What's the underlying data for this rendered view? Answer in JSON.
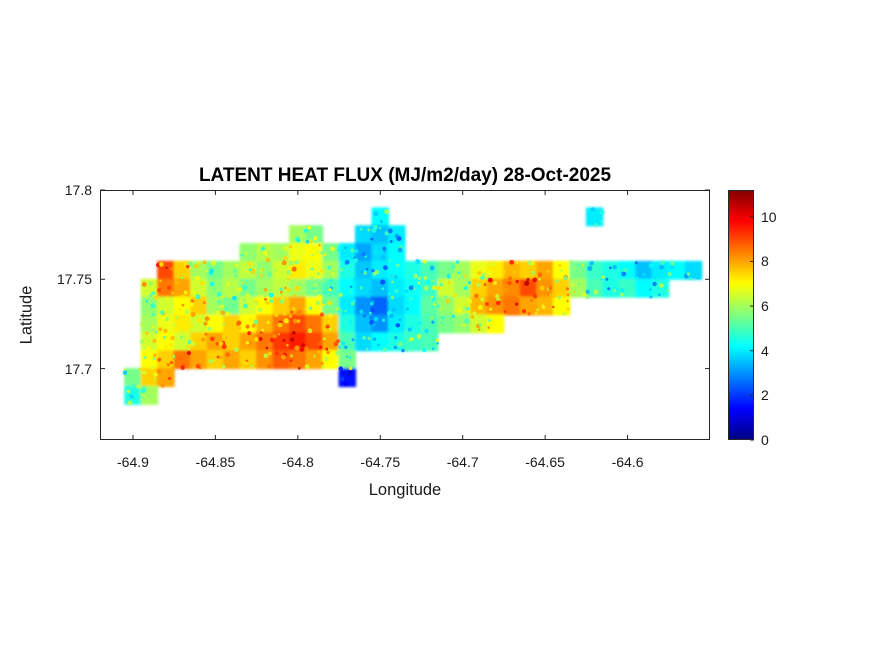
{
  "chart_data": {
    "type": "heatmap",
    "title": "LATENT HEAT FLUX (MJ/m2/day) 28-Oct-2025",
    "xlabel": "Longitude",
    "ylabel": "Latitude",
    "xlim": [
      -64.92,
      -64.55
    ],
    "ylim": [
      17.66,
      17.8
    ],
    "xticks": [
      -64.9,
      -64.85,
      -64.8,
      -64.75,
      -64.7,
      -64.65,
      -64.6
    ],
    "xtick_labels": [
      "-64.9",
      "-64.85",
      "-64.8",
      "-64.75",
      "-64.7",
      "-64.65",
      "-64.6"
    ],
    "yticks": [
      17.7,
      17.75,
      17.8
    ],
    "ytick_labels": [
      "17.7",
      "17.75",
      "17.8"
    ],
    "grid_on": false,
    "legend": "colorbar-right",
    "colormap": "jet",
    "clim": [
      0,
      11.2
    ],
    "colorbar_ticks": [
      0,
      2,
      4,
      6,
      8,
      10
    ],
    "colorbar_tick_labels": [
      "0",
      "2",
      "4",
      "6",
      "8",
      "10"
    ],
    "grid": {
      "lon_start": -64.9,
      "lon_step": 0.01,
      "lat_start": 17.785,
      "lat_step": 0.01,
      "note": "rows top-to-bottom by latitude, cols west-to-east by longitude; null = ocean; values are MJ/m2/day",
      "values": [
        [
          null,
          null,
          null,
          null,
          null,
          null,
          null,
          null,
          null,
          null,
          null,
          null,
          null,
          null,
          null,
          4.2,
          null,
          null,
          null,
          null,
          null,
          null,
          null,
          null,
          null,
          null,
          null,
          null,
          4.0,
          null,
          null,
          null,
          null,
          null,
          null
        ],
        [
          null,
          null,
          null,
          null,
          null,
          null,
          null,
          null,
          null,
          null,
          6.0,
          5.5,
          null,
          null,
          3.8,
          3.5,
          4.0,
          null,
          null,
          null,
          null,
          null,
          null,
          null,
          null,
          null,
          null,
          null,
          null,
          null,
          null,
          null,
          null,
          null,
          null
        ],
        [
          null,
          null,
          null,
          null,
          null,
          null,
          null,
          5.8,
          6.2,
          6.0,
          6.8,
          7.0,
          5.5,
          4.0,
          3.2,
          3.8,
          4.2,
          null,
          null,
          null,
          null,
          null,
          null,
          null,
          null,
          null,
          null,
          null,
          null,
          null,
          null,
          null,
          null,
          null,
          null
        ],
        [
          null,
          null,
          9.0,
          7.5,
          6.0,
          5.5,
          6.0,
          6.3,
          5.8,
          6.5,
          7.2,
          6.8,
          6.0,
          4.5,
          3.6,
          4.0,
          4.2,
          4.5,
          5.0,
          5.5,
          6.0,
          6.8,
          7.2,
          7.8,
          7.5,
          8.0,
          7.0,
          5.5,
          4.8,
          4.5,
          4.2,
          3.5,
          4.0,
          4.2,
          3.8
        ],
        [
          null,
          6.5,
          8.5,
          8.0,
          6.5,
          5.8,
          6.2,
          5.5,
          6.0,
          6.3,
          6.0,
          5.5,
          5.0,
          4.2,
          3.8,
          3.5,
          4.0,
          4.3,
          4.8,
          6.5,
          6.0,
          7.5,
          8.0,
          8.3,
          9.0,
          8.2,
          7.5,
          6.0,
          5.0,
          4.5,
          4.8,
          4.2,
          4.5,
          null,
          null
        ],
        [
          null,
          5.8,
          6.5,
          7.0,
          7.5,
          6.0,
          5.5,
          6.5,
          7.0,
          7.5,
          8.0,
          7.0,
          5.5,
          4.0,
          3.0,
          2.5,
          3.8,
          4.2,
          5.2,
          5.8,
          6.5,
          7.8,
          8.2,
          8.5,
          8.0,
          7.8,
          7.0,
          null,
          null,
          null,
          null,
          null,
          null,
          null,
          null
        ],
        [
          null,
          6.0,
          6.8,
          7.2,
          6.5,
          7.0,
          7.5,
          7.0,
          7.8,
          8.5,
          9.0,
          8.5,
          7.5,
          4.5,
          3.5,
          3.0,
          4.0,
          4.5,
          5.0,
          5.5,
          5.8,
          6.5,
          7.0,
          null,
          null,
          null,
          null,
          null,
          null,
          null,
          null,
          null,
          null,
          null,
          null
        ],
        [
          null,
          6.5,
          7.0,
          6.5,
          7.5,
          8.0,
          7.5,
          8.0,
          8.5,
          9.2,
          9.5,
          9.0,
          8.0,
          5.0,
          3.8,
          4.2,
          4.5,
          4.8,
          5.0,
          null,
          null,
          null,
          null,
          null,
          null,
          null,
          null,
          null,
          null,
          null,
          null,
          null,
          null,
          null,
          null
        ],
        [
          null,
          7.0,
          7.5,
          8.5,
          8.0,
          7.5,
          8.0,
          7.5,
          8.2,
          8.8,
          8.5,
          8.0,
          7.0,
          5.5,
          null,
          null,
          null,
          null,
          null,
          null,
          null,
          null,
          null,
          null,
          null,
          null,
          null,
          null,
          null,
          null,
          null,
          null,
          null,
          null,
          null
        ],
        [
          5.5,
          7.5,
          8.0,
          null,
          null,
          null,
          null,
          null,
          null,
          null,
          null,
          null,
          null,
          1.5,
          null,
          null,
          null,
          null,
          null,
          null,
          null,
          null,
          null,
          null,
          null,
          null,
          null,
          null,
          null,
          null,
          null,
          null,
          null,
          null,
          null
        ],
        [
          4.5,
          6.0,
          null,
          null,
          null,
          null,
          null,
          null,
          null,
          null,
          null,
          null,
          null,
          null,
          null,
          null,
          null,
          null,
          null,
          null,
          null,
          null,
          null,
          null,
          null,
          null,
          null,
          null,
          null,
          null,
          null,
          null,
          null,
          null,
          null
        ]
      ]
    },
    "speckle": {
      "seed": 20251028,
      "per_cell": 4,
      "amplitude": 2.0
    }
  }
}
